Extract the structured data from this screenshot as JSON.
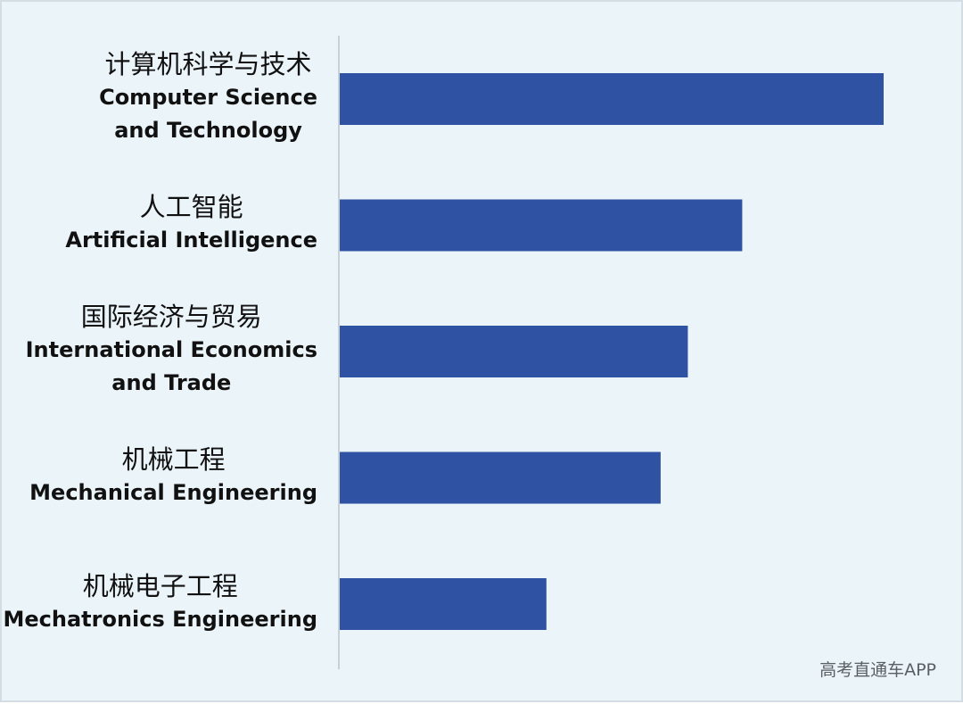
{
  "chart_data": {
    "type": "bar",
    "orientation": "horizontal",
    "categories": [
      {
        "zh": "计算机科学与技术",
        "en": [
          "Computer Science",
          "and Technology"
        ]
      },
      {
        "zh": "人工智能",
        "en": [
          "Artificial Intelligence"
        ]
      },
      {
        "zh": "国际经济与贸易",
        "en": [
          "International Economics",
          "and Trade"
        ]
      },
      {
        "zh": "机械工程",
        "en": [
          "Mechanical Engineering"
        ]
      },
      {
        "zh": "机械电子工程",
        "en": [
          "Mechatronics Engineering"
        ]
      }
    ],
    "values": [
      100,
      74,
      64,
      59,
      38
    ],
    "xlim": [
      0,
      100
    ],
    "bar_color": "#2f52a2",
    "axis_color": "#b9c3c9",
    "grid": false,
    "legend": "none"
  },
  "watermark": "高考直通车APP"
}
